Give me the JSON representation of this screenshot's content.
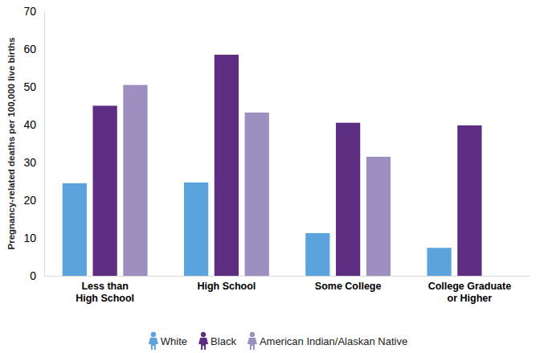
{
  "chart_data": {
    "type": "bar",
    "y_label": "Pregnancy-related deaths per 100,000 live births",
    "categories": [
      "Less than High School",
      "High School",
      "Some College",
      "College Graduate or Higher"
    ],
    "series": [
      {
        "name": "White",
        "color": "#5ba3dc",
        "values": [
          24.5,
          24.7,
          11.3,
          7.4
        ]
      },
      {
        "name": "Black",
        "color": "#5c2d82",
        "values": [
          45,
          58.5,
          40.5,
          39.8
        ]
      },
      {
        "name": "American Indian/Alaskan Native",
        "color": "#9d8fc0",
        "values": [
          50.5,
          43.2,
          31.5,
          null
        ]
      }
    ],
    "ylim": [
      0,
      70
    ],
    "yticks": [
      0,
      10,
      20,
      30,
      40,
      50,
      60,
      70
    ],
    "grid": false,
    "legend": "bottom"
  }
}
